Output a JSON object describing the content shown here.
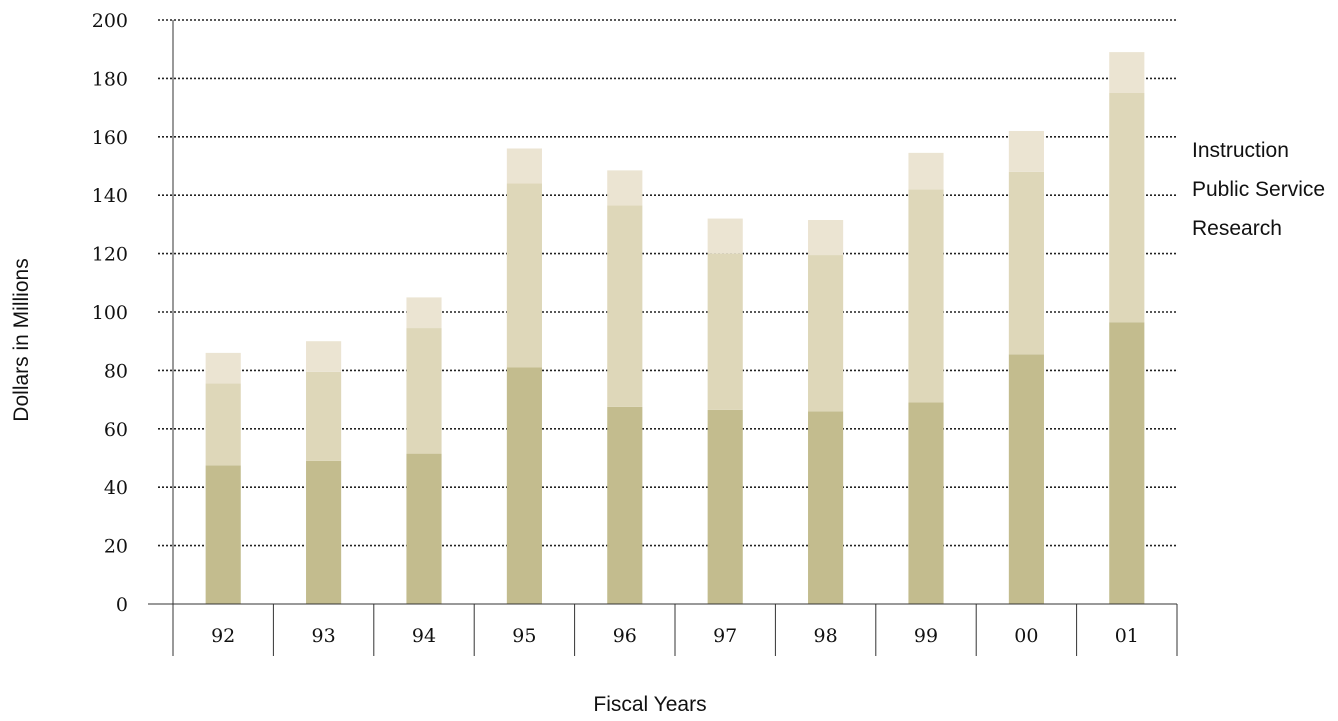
{
  "chart_data": {
    "type": "bar",
    "stacked": true,
    "categories": [
      "92",
      "93",
      "94",
      "95",
      "96",
      "97",
      "98",
      "99",
      "00",
      "01"
    ],
    "series": [
      {
        "name": "Research",
        "color": "#c3bc8e",
        "values": [
          47.5,
          49,
          51.5,
          81,
          67.5,
          66.5,
          66,
          69,
          85.5,
          96.5
        ]
      },
      {
        "name": "Public Service",
        "color": "#ded7b9",
        "values": [
          28,
          30.5,
          43,
          63,
          69,
          53.5,
          53.5,
          73,
          62.5,
          78.5
        ]
      },
      {
        "name": "Instruction",
        "color": "#ebe4d2",
        "values": [
          10.5,
          10.5,
          10.5,
          12,
          12,
          12,
          12,
          12.5,
          14,
          14
        ]
      }
    ],
    "xlabel": "Fiscal Years",
    "ylabel": "Dollars in Millions",
    "ylim": [
      0,
      200
    ],
    "yticks": [
      0,
      20,
      40,
      60,
      80,
      100,
      120,
      140,
      160,
      180,
      200
    ],
    "grid": true,
    "legend_position": "right",
    "legend_order": [
      "Instruction",
      "Public Service",
      "Research"
    ]
  }
}
